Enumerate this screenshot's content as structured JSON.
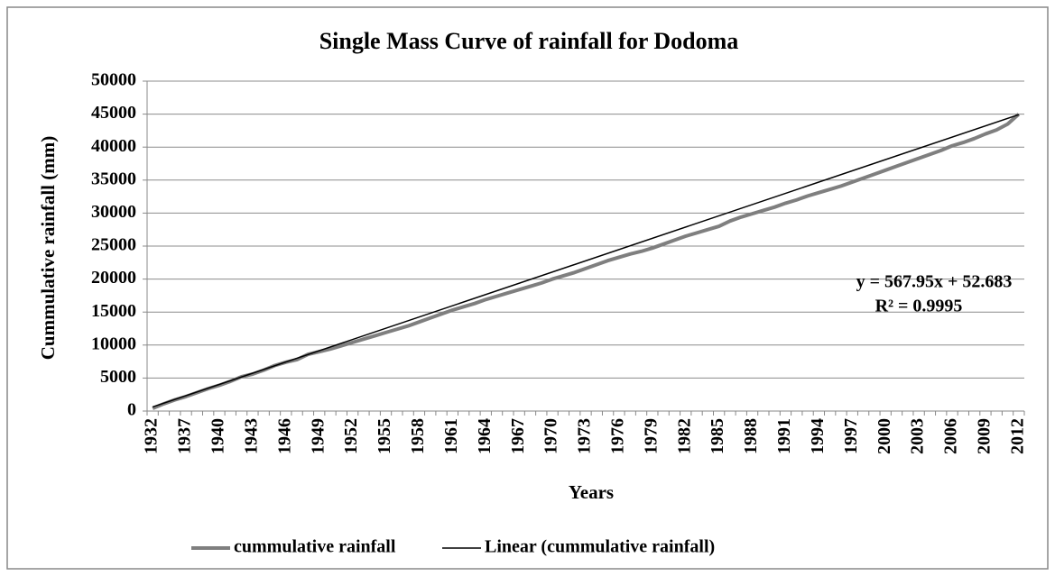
{
  "chart_data": {
    "type": "line",
    "title": "Single Mass Curve of rainfall for Dodoma",
    "x_label": "Years",
    "y_label": "Cummulative rainfall (mm)",
    "categories": [
      "1932",
      null,
      null,
      "1937",
      null,
      null,
      "1940",
      null,
      null,
      "1943",
      null,
      null,
      "1946",
      null,
      null,
      "1949",
      null,
      null,
      "1952",
      null,
      null,
      "1955",
      null,
      null,
      "1958",
      null,
      null,
      "1961",
      null,
      null,
      "1964",
      null,
      null,
      "1967",
      null,
      null,
      "1970",
      null,
      null,
      "1973",
      null,
      null,
      "1976",
      null,
      null,
      "1979",
      null,
      null,
      "1982",
      null,
      null,
      "1985",
      null,
      null,
      "1988",
      null,
      null,
      "1991",
      null,
      null,
      "1994",
      null,
      null,
      "1997",
      null,
      null,
      "2000",
      null,
      null,
      "2003",
      null,
      null,
      "2006",
      null,
      null,
      "2009",
      null,
      null,
      "2012"
    ],
    "series": [
      {
        "name": "cummulative rainfall",
        "color": "#7f7f7f",
        "values": [
          400,
          1100,
          1700,
          2200,
          2800,
          3400,
          3900,
          4500,
          5200,
          5600,
          6200,
          6900,
          7400,
          7800,
          8600,
          9000,
          9400,
          9900,
          10400,
          10900,
          11400,
          11900,
          12400,
          12900,
          13500,
          14100,
          14700,
          15300,
          15800,
          16300,
          16900,
          17400,
          17900,
          18400,
          18900,
          19400,
          20000,
          20500,
          21000,
          21600,
          22200,
          22800,
          23300,
          23800,
          24200,
          24700,
          25300,
          25900,
          26500,
          27000,
          27500,
          28000,
          28800,
          29400,
          29900,
          30400,
          30900,
          31500,
          32000,
          32600,
          33100,
          33600,
          34100,
          34700,
          35300,
          35900,
          36500,
          37100,
          37700,
          38300,
          38900,
          39500,
          40200,
          40700,
          41300,
          42000,
          42600,
          43500,
          45000
        ]
      }
    ],
    "trendline": {
      "name": "Linear (cummulative rainfall)",
      "color": "#000000",
      "slope": 567.95,
      "intercept": 52.683,
      "equation": "y = 567.95x + 52.683",
      "r_squared": 0.9995,
      "r_squared_label": "R² = 0.9995"
    },
    "ylim": [
      0,
      50000
    ],
    "yticks": [
      0,
      5000,
      10000,
      15000,
      20000,
      25000,
      30000,
      35000,
      40000,
      45000,
      50000
    ],
    "grid": true,
    "legend": "bottom"
  }
}
